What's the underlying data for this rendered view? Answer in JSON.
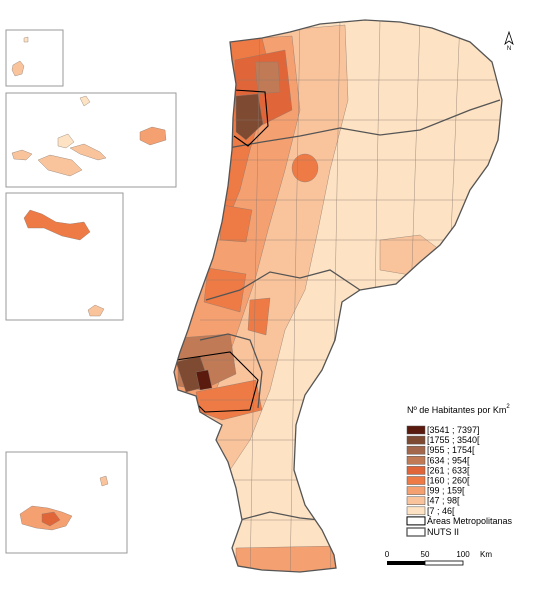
{
  "legend": {
    "title": "Nº de Habitantes por Km",
    "title_sup": "2",
    "classes": [
      {
        "label": "[3541 ; 7397]",
        "color": "#5a1a0e"
      },
      {
        "label": "[1755 ; 3540[",
        "color": "#7e4a32"
      },
      {
        "label": "[955 ; 1754[",
        "color": "#a3684b"
      },
      {
        "label": "[634 ; 954[",
        "color": "#c07a55"
      },
      {
        "label": "[261 ; 633[",
        "color": "#e0663a"
      },
      {
        "label": "[160 ; 260[",
        "color": "#ee7a45"
      },
      {
        "label": "[99 ; 159[",
        "color": "#f5a070"
      },
      {
        "label": "[47 ; 98[",
        "color": "#f9c49c"
      },
      {
        "label": "[7 ; 46[",
        "color": "#fde2c3"
      }
    ],
    "metro": "Áreas Metropolitanas",
    "nuts": "NUTS II"
  },
  "scale": {
    "labels": [
      "0",
      "50",
      "100"
    ],
    "unit": "Km"
  },
  "north": "N"
}
